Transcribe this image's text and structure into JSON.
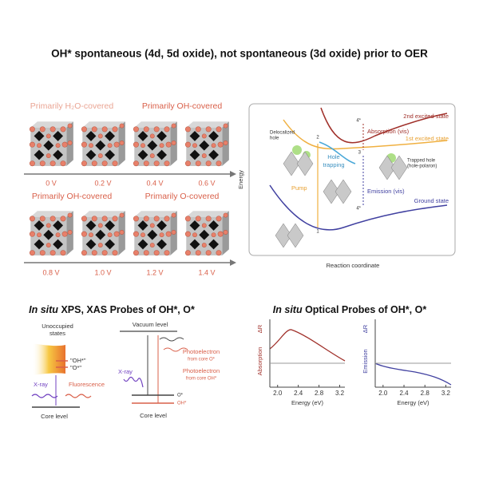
{
  "title": "OH* spontaneous (4d, 5d oxide), not spontaneous (3d oxide) prior to OER",
  "potential_panel": {
    "top_labels": [
      "Primarily H₂O-covered",
      "Primarily OH-covered"
    ],
    "top_potentials": [
      "0 V",
      "0.2 V",
      "0.4 V",
      "0.6 V"
    ],
    "bottom_labels": [
      "Primarily OH-covered",
      "Primarily O-covered"
    ],
    "bottom_potentials": [
      "0.8 V",
      "1.0 V",
      "1.2 V",
      "1.4 V"
    ]
  },
  "energy_diagram": {
    "y_label": "Energy",
    "x_label": "Reaction coordinate",
    "states": [
      "2nd excited state",
      "1st excited state",
      "Ground state"
    ],
    "absorption": "Absorption (vis)",
    "emission": "Emission (vis)",
    "pump": "Pump",
    "hole_trapping": [
      "Hole",
      "trapping"
    ],
    "delocalized_hole": [
      "Delocalized",
      "hole"
    ],
    "trapped_hole": [
      "Trapped hole",
      "(hole-polaron)"
    ],
    "points": [
      "1",
      "2",
      "3",
      "4*",
      "4*"
    ]
  },
  "xps_panel": {
    "title_italic": "In situ",
    "title_rest": "XPS, XAS Probes of OH*, O*",
    "unoccupied": [
      "Unoccupied",
      "states"
    ],
    "oh_quoted": "\"OH*\"",
    "o_quoted": "\"O*\"",
    "xray_left": "X-ray",
    "fluorescence": "Fluorescence",
    "core_left": "Core level",
    "vacuum": "Vacuum level",
    "photo_o": [
      "Photoelectron",
      "from core O*"
    ],
    "photo_oh": [
      "Photoelectron",
      "from core OH*"
    ],
    "xray_right": "X-ray",
    "o_level": "O*",
    "oh_level": "OH*",
    "core_right": "Core level"
  },
  "optical_panel": {
    "title_italic": "In situ",
    "title_rest": "Optical Probes of OH*, O*",
    "charts": [
      {
        "ylabel": "Absorption",
        "delta": "ΔR"
      },
      {
        "ylabel": "Emission",
        "delta": "ΔR"
      }
    ],
    "xlabel": "Energy (eV)",
    "xlim": [
      1.85,
      3.3
    ],
    "xticks": [
      {
        "value": 2.0,
        "label": "2.0"
      },
      {
        "value": 2.4,
        "label": "2.4"
      },
      {
        "value": 2.8,
        "label": "2.8"
      },
      {
        "value": 3.2,
        "label": "3.2"
      }
    ]
  }
}
